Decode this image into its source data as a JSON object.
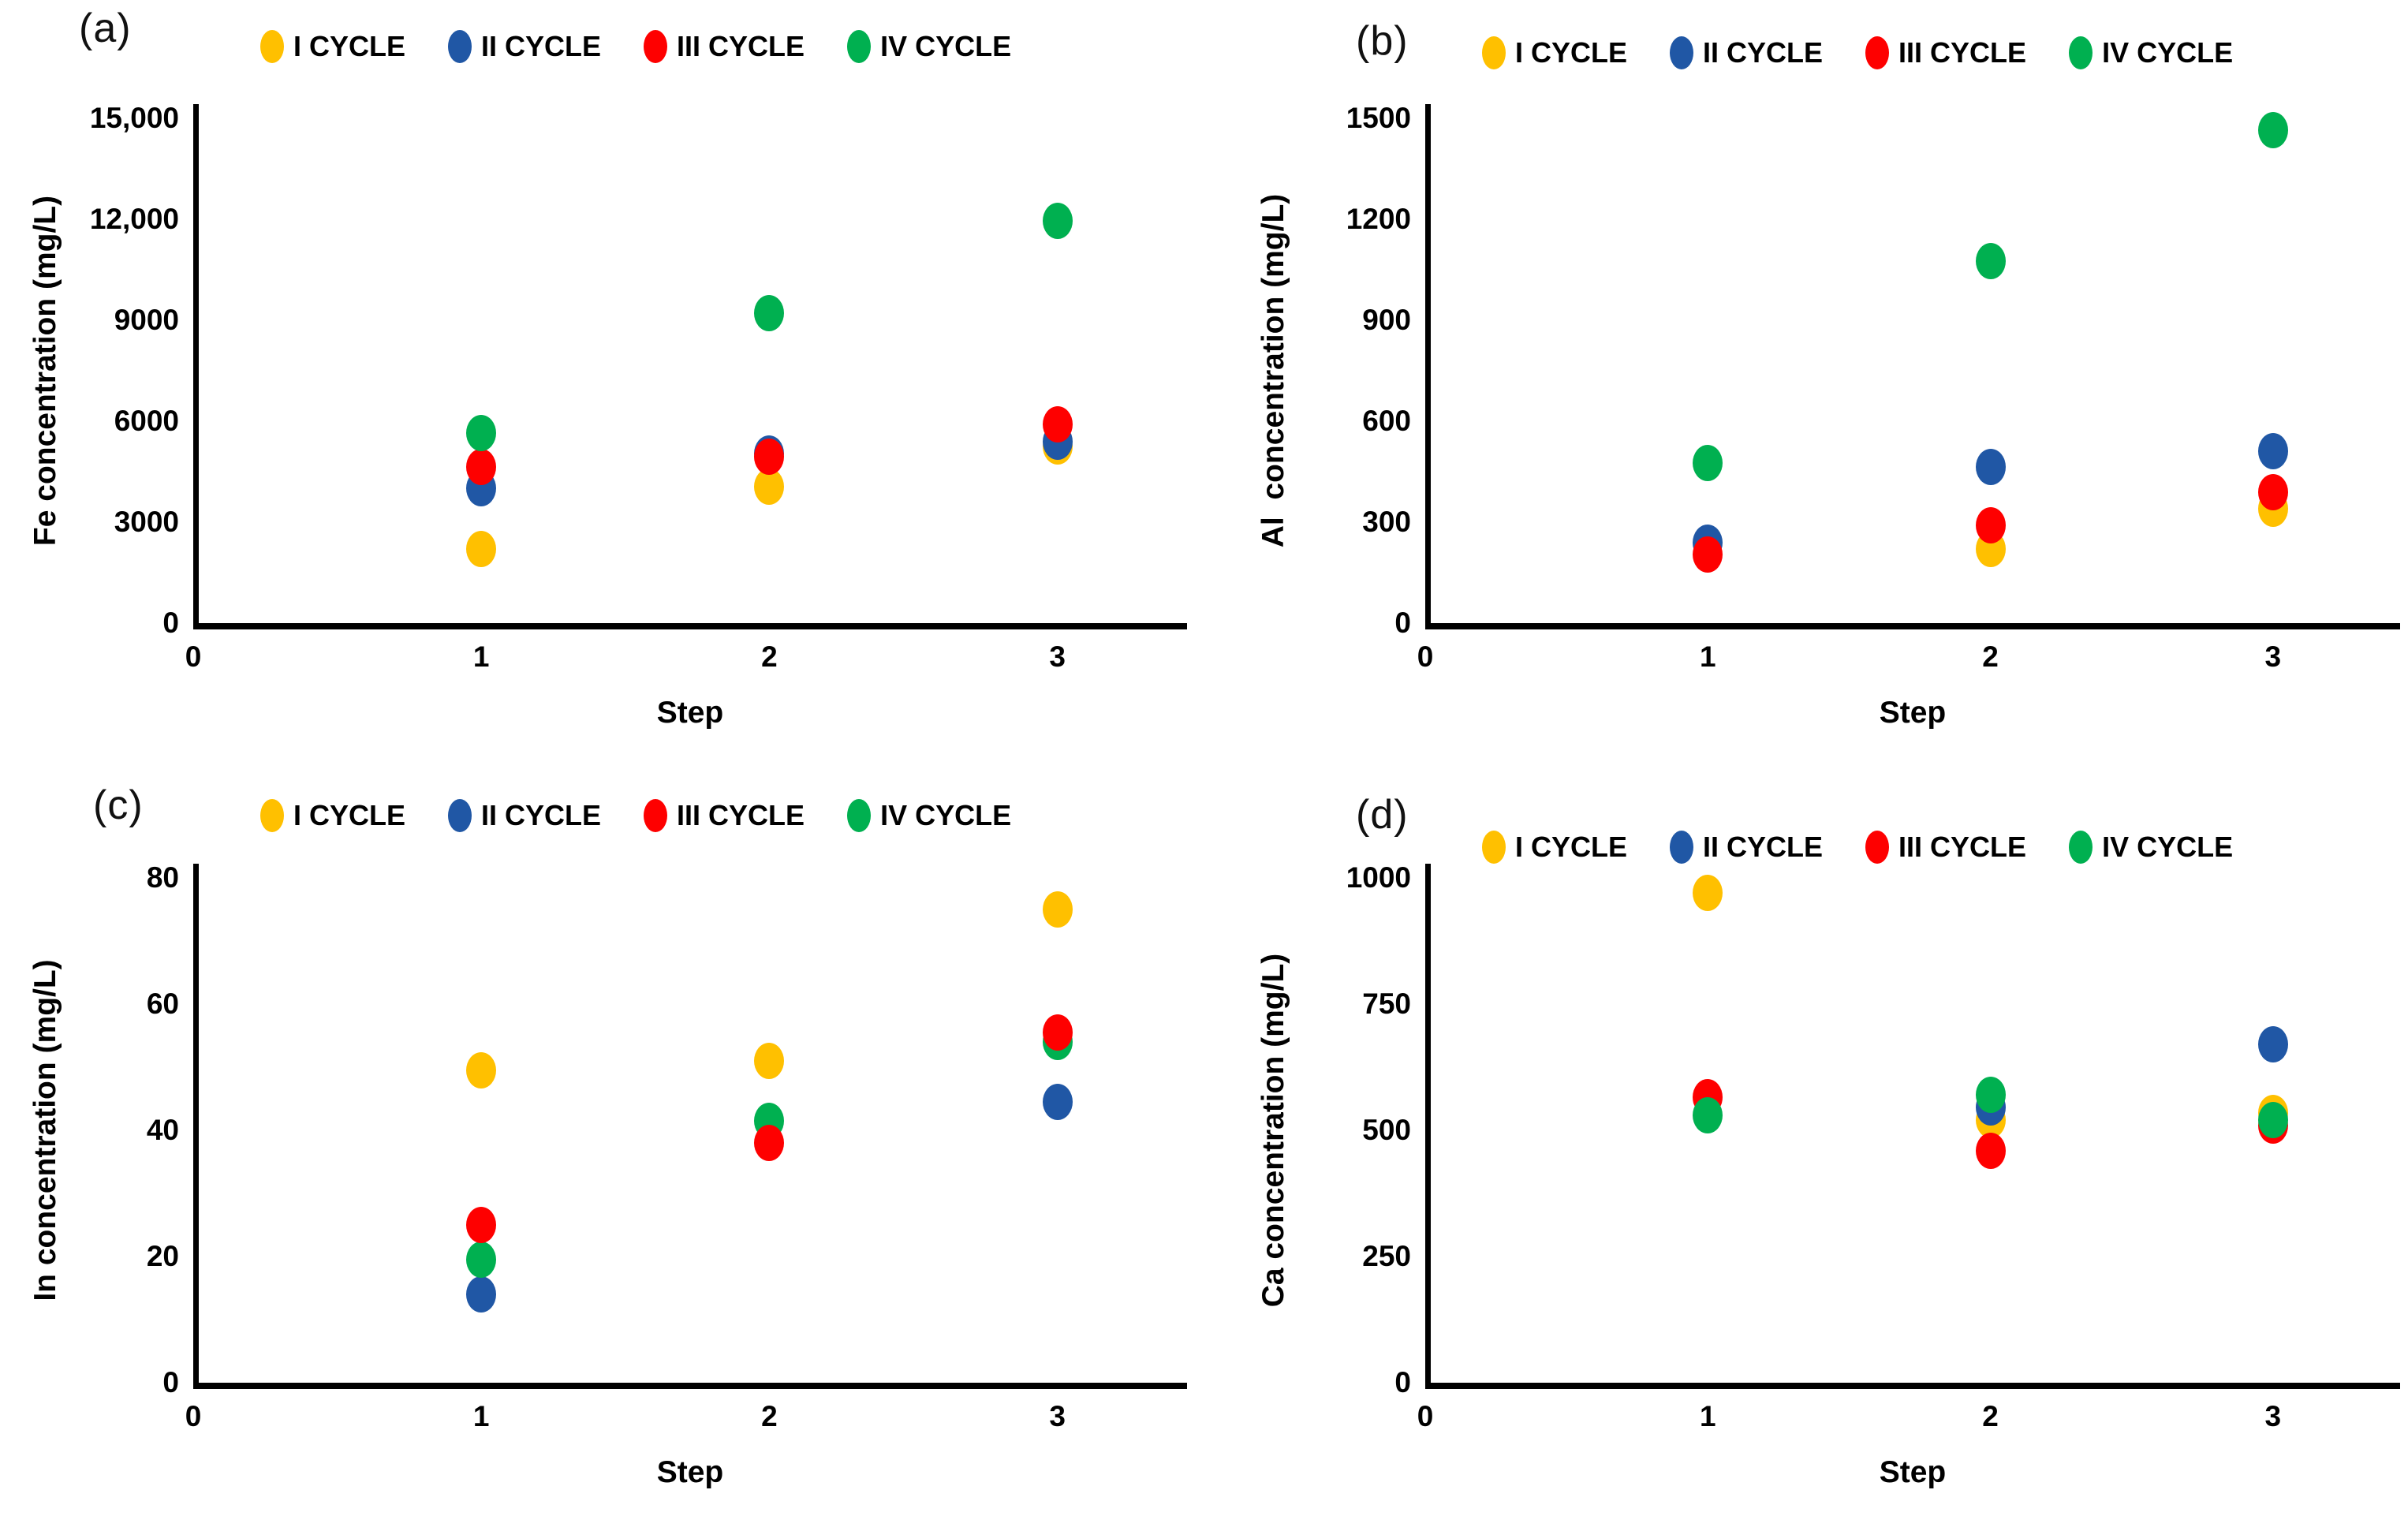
{
  "figure": {
    "background": "#ffffff",
    "legend": [
      "I CYCLE",
      "II CYCLE",
      "III CYCLE",
      "IV CYCLE"
    ],
    "legend_colors": [
      "#FFC000",
      "#2057A5",
      "#FE0000",
      "#00B050"
    ],
    "xticks": [
      "0",
      "1",
      "2",
      "3"
    ]
  },
  "chart_data": [
    {
      "type": "scatter",
      "panel": "(a)",
      "ylabel": "Fe concentration (mg/L)",
      "xlabel": "Step",
      "ylim": [
        0,
        15000
      ],
      "yticks": [
        "15,000",
        "12,000",
        "9000",
        "6000",
        "3000",
        "0"
      ],
      "x": [
        1,
        2,
        3
      ],
      "xlim": [
        0,
        3.45
      ],
      "legend_position": "top",
      "grid": false,
      "series": [
        {
          "name": "I CYCLE",
          "color": "#FFC000",
          "values": [
            2200,
            4050,
            5250
          ]
        },
        {
          "name": "II CYCLE",
          "color": "#2057A5",
          "values": [
            4000,
            5050,
            5400
          ]
        },
        {
          "name": "III CYCLE",
          "color": "#FE0000",
          "values": [
            4650,
            4950,
            5900
          ]
        },
        {
          "name": "IV CYCLE",
          "color": "#00B050",
          "values": [
            5650,
            9200,
            11950
          ]
        }
      ]
    },
    {
      "type": "scatter",
      "panel": "(b)",
      "ylabel": "Al  concentration (mg/L)",
      "xlabel": "Step",
      "ylim": [
        0,
        1500
      ],
      "yticks": [
        "1500",
        "1200",
        "900",
        "600",
        "300",
        "0"
      ],
      "x": [
        1,
        2,
        3
      ],
      "xlim": [
        0,
        3.45
      ],
      "legend_position": "top",
      "grid": false,
      "series": [
        {
          "name": "I CYCLE",
          "color": "#FFC000",
          "values": [
            null,
            220,
            340
          ]
        },
        {
          "name": "II CYCLE",
          "color": "#2057A5",
          "values": [
            240,
            465,
            510
          ]
        },
        {
          "name": "III CYCLE",
          "color": "#FE0000",
          "values": [
            205,
            290,
            390
          ]
        },
        {
          "name": "IV CYCLE",
          "color": "#00B050",
          "values": [
            475,
            1075,
            1465
          ]
        }
      ]
    },
    {
      "type": "scatter",
      "panel": "(c)",
      "ylabel": "In concentration (mg/L)",
      "xlabel": "Step",
      "ylim": [
        0,
        80
      ],
      "yticks": [
        "80",
        "60",
        "40",
        "20",
        "0"
      ],
      "x": [
        1,
        2,
        3
      ],
      "xlim": [
        0,
        3.45
      ],
      "legend_position": "top",
      "grid": false,
      "series": [
        {
          "name": "I CYCLE",
          "color": "#FFC000",
          "values": [
            49.5,
            51,
            75
          ]
        },
        {
          "name": "II CYCLE",
          "color": "#2057A5",
          "values": [
            14,
            null,
            44.5
          ]
        },
        {
          "name": "III CYCLE",
          "color": "#FE0000",
          "values": [
            25,
            38,
            55.5
          ]
        },
        {
          "name": "IV CYCLE",
          "color": "#00B050",
          "values": [
            19.5,
            41.5,
            54
          ]
        }
      ]
    },
    {
      "type": "scatter",
      "panel": "(d)",
      "ylabel": "Ca concentration (mg/L)",
      "xlabel": "Step",
      "ylim": [
        0,
        1000
      ],
      "yticks": [
        "1000",
        "750",
        "500",
        "250",
        "0"
      ],
      "x": [
        1,
        2,
        3
      ],
      "xlim": [
        0,
        3.45
      ],
      "legend_position": "top",
      "grid": false,
      "series": [
        {
          "name": "I CYCLE",
          "color": "#FFC000",
          "values": [
            970,
            520,
            535
          ]
        },
        {
          "name": "II CYCLE",
          "color": "#2057A5",
          "values": [
            null,
            545,
            670
          ]
        },
        {
          "name": "III CYCLE",
          "color": "#FE0000",
          "values": [
            565,
            460,
            510
          ]
        },
        {
          "name": "IV CYCLE",
          "color": "#00B050",
          "values": [
            530,
            570,
            520
          ]
        }
      ]
    }
  ]
}
